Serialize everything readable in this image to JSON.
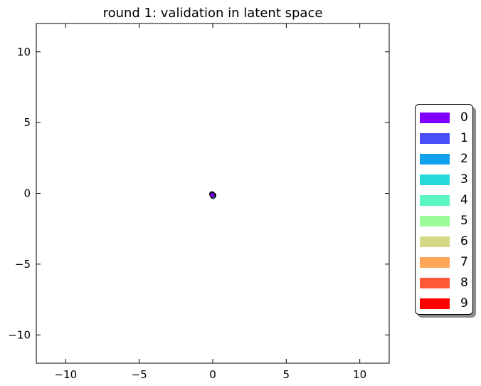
{
  "chart_data": {
    "type": "scatter",
    "title": "round 1: validation in latent space",
    "xlabel": "",
    "ylabel": "",
    "xlim": [
      -12,
      12
    ],
    "ylim": [
      -12,
      12
    ],
    "grid": false,
    "legend_position": "right",
    "x_ticks": [
      -10,
      -5,
      0,
      5,
      10
    ],
    "y_ticks": [
      -10,
      -5,
      0,
      5,
      10
    ],
    "x_tick_labels": [
      "−10",
      "−5",
      "0",
      "5",
      "10"
    ],
    "y_tick_labels": [
      "−10",
      "−5",
      "0",
      "5",
      "10"
    ],
    "points": [
      {
        "x": 0.0,
        "y": -0.1,
        "class": "2"
      },
      {
        "x": 0.05,
        "y": -0.15,
        "class": "2"
      },
      {
        "x": -0.05,
        "y": -0.05,
        "class": "1"
      },
      {
        "x": 0.02,
        "y": -0.2,
        "class": "3"
      },
      {
        "x": -0.02,
        "y": -0.12,
        "class": "0"
      }
    ],
    "legend": [
      {
        "label": "0",
        "color": "#7f00ff"
      },
      {
        "label": "1",
        "color": "#4a4ef8"
      },
      {
        "label": "2",
        "color": "#11a1ec"
      },
      {
        "label": "3",
        "color": "#26d9d9"
      },
      {
        "label": "4",
        "color": "#5cf7c0"
      },
      {
        "label": "5",
        "color": "#9bfb9b"
      },
      {
        "label": "6",
        "color": "#d5d885"
      },
      {
        "label": "7",
        "color": "#ffa65b"
      },
      {
        "label": "8",
        "color": "#ff5a35"
      },
      {
        "label": "9",
        "color": "#ff0000"
      }
    ]
  }
}
